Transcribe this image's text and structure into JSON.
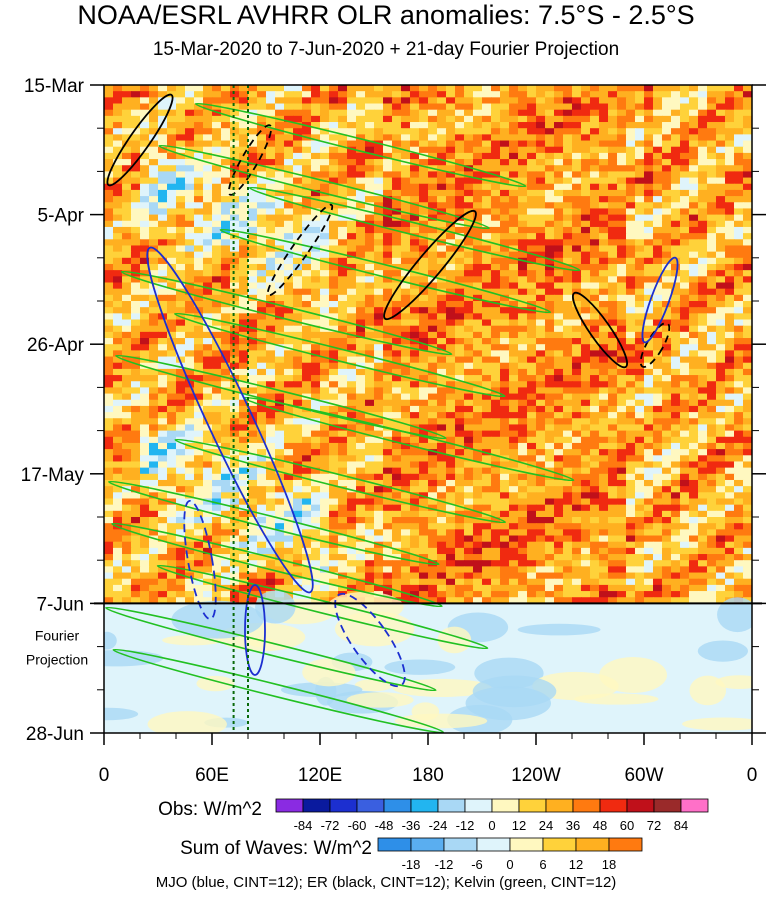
{
  "title": "NOAA/ESRL AVHRR OLR anomalies: 7.5°S - 2.5°S",
  "subtitle": "15-Mar-2020 to 7-Jun-2020 + 21-day Fourier Projection",
  "chart_data": {
    "type": "heatmap",
    "x_tick_labels": [
      "0",
      "60E",
      "120E",
      "180",
      "120W",
      "60W",
      "0"
    ],
    "x_ticks_deg": [
      0,
      60,
      120,
      180,
      240,
      300,
      360
    ],
    "y_tick_labels": [
      "15-Mar",
      "5-Apr",
      "26-Apr",
      "17-May",
      "7-Jun",
      "28-Jun"
    ],
    "y_ticks_day": [
      0,
      21,
      42,
      63,
      84,
      105
    ],
    "y_range_days": [
      0,
      105
    ],
    "observation_end_day": 84,
    "projection_label": [
      "Fourier",
      "Projection"
    ],
    "obs_legend": {
      "label": "Obs: W/m^2",
      "levels": [
        "-84",
        "-72",
        "-60",
        "-48",
        "-36",
        "-24",
        "-12",
        "0",
        "12",
        "24",
        "36",
        "48",
        "60",
        "72",
        "84"
      ],
      "colors": [
        "#8a2be2",
        "#0a1a9e",
        "#1c2fd0",
        "#3a5fe0",
        "#2e8fe8",
        "#22b5f0",
        "#a9d8f5",
        "#dff4fb",
        "#fff8c0",
        "#ffd23a",
        "#ffb020",
        "#ff7a10",
        "#f02a10",
        "#c0101a",
        "#9a2a2a",
        "#ff70c8"
      ]
    },
    "wave_legend": {
      "label": "Sum of Waves: W/m^2",
      "levels": [
        "-18",
        "-12",
        "-6",
        "0",
        "6",
        "12",
        "18"
      ],
      "colors": [
        "#2e8fe8",
        "#5aaef0",
        "#a9d8f5",
        "#dff4fb",
        "#fff8c0",
        "#ffd23a",
        "#ffb020",
        "#ff7a10"
      ]
    },
    "filtered_waves": [
      {
        "name": "MJO",
        "color": "#1c2fd0",
        "cint": 12
      },
      {
        "name": "ER",
        "color": "#000000",
        "cint": 12
      },
      {
        "name": "Kelvin",
        "color": "#22c022",
        "cint": 12
      }
    ],
    "reference_lines_deg": [
      72,
      80
    ]
  },
  "caption": "MJO (blue, CINT=12); ER (black, CINT=12); Kelvin (green, CINT=12)"
}
